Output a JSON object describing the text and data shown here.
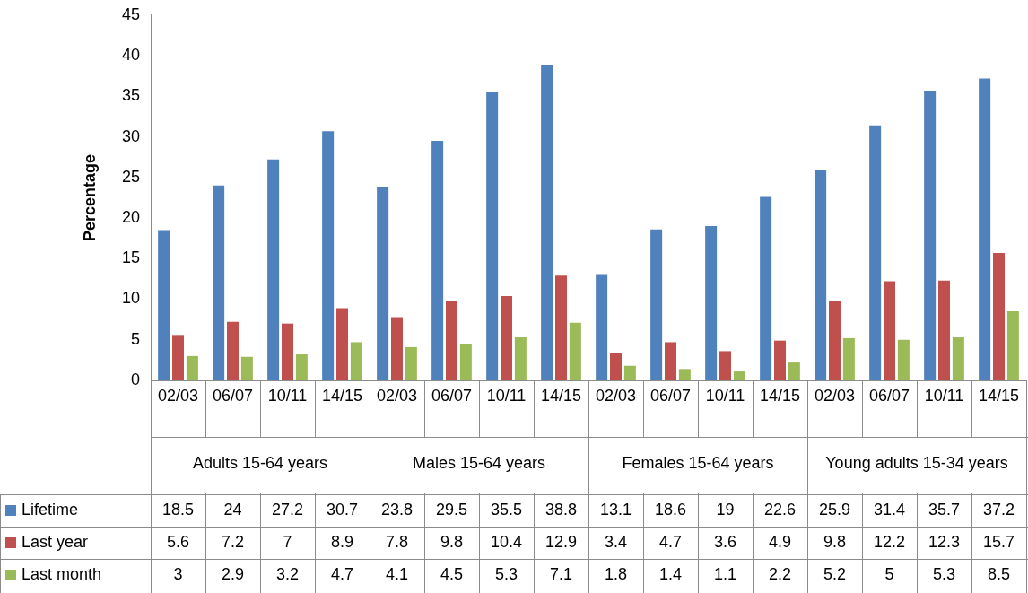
{
  "chart_data": {
    "type": "bar",
    "ylabel": "Percentage",
    "categories": [
      "02/03",
      "06/07",
      "10/11",
      "14/15",
      "02/03",
      "06/07",
      "10/11",
      "14/15",
      "02/03",
      "06/07",
      "10/11",
      "14/15",
      "02/03",
      "06/07",
      "10/11",
      "14/15"
    ],
    "annotations": [
      "Adults 15-64 years",
      "Males 15-64 years",
      "Females 15-64 years",
      "Young adults 15-34 years"
    ],
    "series": [
      {
        "name": "Lifetime",
        "color": "#4f81bd",
        "values": [
          18.5,
          24,
          27.2,
          30.7,
          23.8,
          29.5,
          35.5,
          38.8,
          13.1,
          18.6,
          19,
          22.6,
          25.9,
          31.4,
          35.7,
          37.2
        ]
      },
      {
        "name": "Last year",
        "color": "#c0504d",
        "values": [
          5.6,
          7.2,
          7,
          8.9,
          7.8,
          9.8,
          10.4,
          12.9,
          3.4,
          4.7,
          3.6,
          4.9,
          9.8,
          12.2,
          12.3,
          15.7
        ]
      },
      {
        "name": "Last month",
        "color": "#9bbb59",
        "values": [
          3,
          2.9,
          3.2,
          4.7,
          4.1,
          4.5,
          5.3,
          7.1,
          1.8,
          1.4,
          1.1,
          2.2,
          5.2,
          5,
          5.3,
          8.5
        ]
      }
    ],
    "ylim": [
      0,
      45
    ],
    "yticks": [
      0,
      5,
      10,
      15,
      20,
      25,
      30,
      35,
      40,
      45
    ],
    "grid": false,
    "legend": "bottom",
    "data_labels": true
  }
}
